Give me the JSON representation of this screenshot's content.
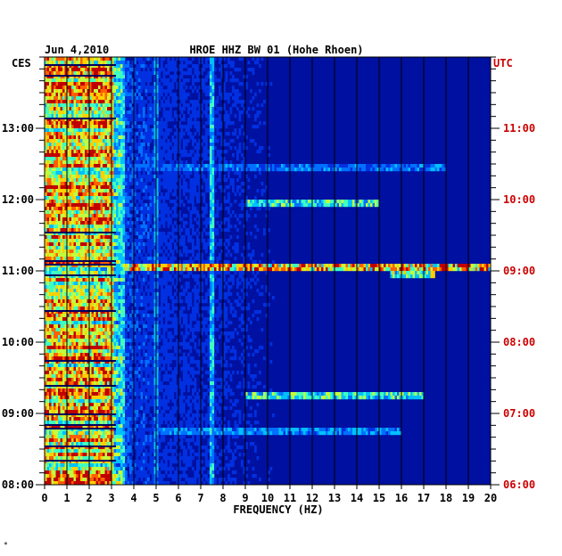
{
  "header": {
    "date": "Jun 4,2010",
    "station": "HROE HHZ BW 01 (Hohe Rhoen)",
    "left_zone": "CES",
    "right_zone": "UTC"
  },
  "footer": {
    "mark": "*"
  },
  "chart_data": {
    "type": "heatmap",
    "title": "HROE HHZ BW 01 (Hohe Rhoen)",
    "xlabel": "FREQUENCY (HZ)",
    "xlim": [
      0,
      20
    ],
    "x_ticks": [
      "0",
      "1",
      "2",
      "3",
      "4",
      "5",
      "6",
      "7",
      "8",
      "9",
      "10",
      "11",
      "12",
      "13",
      "14",
      "15",
      "16",
      "17",
      "18",
      "19",
      "20"
    ],
    "ylim_hours": [
      8.0,
      14.0
    ],
    "y_ticks_ces": [
      {
        "hour": 13,
        "label": "13:00"
      },
      {
        "hour": 12,
        "label": "12:00"
      },
      {
        "hour": 11,
        "label": "11:00"
      },
      {
        "hour": 10,
        "label": "10:00"
      },
      {
        "hour": 9,
        "label": "09:00"
      },
      {
        "hour": 8,
        "label": "08:00"
      }
    ],
    "y_ticks_utc": [
      {
        "hour": 13,
        "label": "11:00"
      },
      {
        "hour": 12,
        "label": "10:00"
      },
      {
        "hour": 11,
        "label": "09:00"
      },
      {
        "hour": 10,
        "label": "08:00"
      },
      {
        "hour": 9,
        "label": "07:00"
      },
      {
        "hour": 8,
        "label": "06:00"
      }
    ],
    "background_color": "#0010a0",
    "colormap": [
      "#0010a0",
      "#0030e0",
      "#0070ff",
      "#00c0ff",
      "#40ffc0",
      "#c0ff40",
      "#ffd000",
      "#ff6000",
      "#c00000"
    ],
    "low_freq_band_hz": [
      0,
      3.5
    ],
    "line_features": [
      {
        "freq_hz": 3.0,
        "strength": 0.8
      },
      {
        "freq_hz": 3.5,
        "strength": 0.5
      },
      {
        "freq_hz": 5.0,
        "strength": 0.4
      },
      {
        "freq_hz": 7.5,
        "strength": 0.5
      }
    ],
    "broadband_events": [
      {
        "hour": 11.05,
        "freq_range": [
          3.5,
          20
        ],
        "strength": 0.95
      },
      {
        "hour": 10.95,
        "freq_range": [
          15.5,
          17.5
        ],
        "strength": 0.7
      },
      {
        "hour": 11.95,
        "freq_range": [
          9,
          15
        ],
        "strength": 0.6
      },
      {
        "hour": 9.25,
        "freq_range": [
          9,
          17
        ],
        "strength": 0.6
      },
      {
        "hour": 8.75,
        "freq_range": [
          5,
          16
        ],
        "strength": 0.4
      },
      {
        "hour": 12.45,
        "freq_range": [
          4,
          18
        ],
        "strength": 0.35
      }
    ]
  }
}
